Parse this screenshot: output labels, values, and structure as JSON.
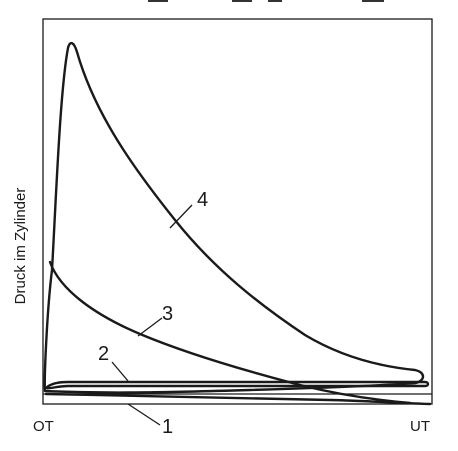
{
  "diagram": {
    "y_axis_label": "Druck im Zylinder",
    "x_axis_labels": {
      "left": "OT",
      "right": "UT"
    },
    "curve_labels": [
      "1",
      "2",
      "3",
      "4"
    ]
  }
}
